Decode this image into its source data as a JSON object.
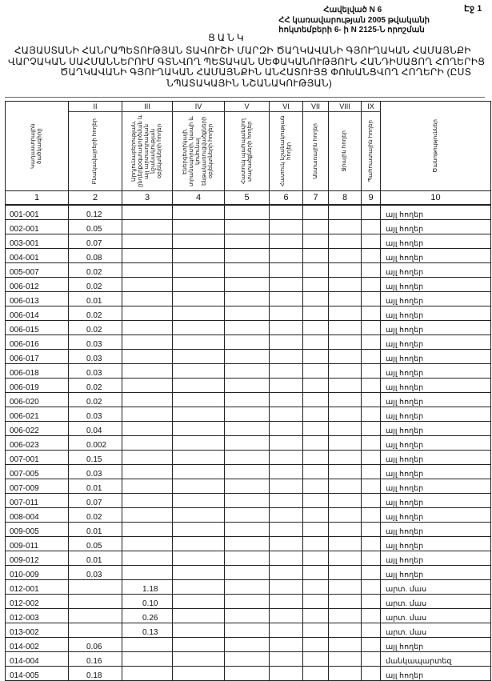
{
  "page_label": "Էջ 1",
  "annex": [
    "Հավելված N 6",
    "ՀՀ կառավարության 2005 թվականի",
    "հոկտեմբերի 6- ի N 2125-Ն որոշման"
  ],
  "list_label": "ՑԱՆԿ",
  "title_lines": [
    "ՀԱՅԱՍՏԱՆԻ ՀԱՆՐԱՊԵՏՈՒԹՅԱՆ ՏԱՎՈՒՇԻ ՄԱՐԶԻ ԾԱՂԿԱՎԱՆԻ ԳՅՈՒՂԱԿԱՆ ՀԱՄԱՅՆՔԻ",
    "ՎԱՐՉԱԿԱՆ ՍԱՀՄԱՆՆԵՐՈՒՄ ԳՏՆՎՈՂ ՊԵՏԱԿԱՆ ՍԵՓԱԿԱՆՈՒԹՅՈՒՆ ՀԱՆԴԻՍԱՑՈՂ ՀՈՂԵՐԻՑ",
    "ԾԱՂԿԱՎԱՆԻ ԳՅՈՒՂԱԿԱՆ ՀԱՄԱՅՆՔԻՆ ԱՆՀԱՏՈՒՅՑ ՓՈԽԱՆՑՎՈՂ ՀՈՂԵՐԻ (ԸՍՏ",
    "ՆՊԱՏԱԿԱՅԻՆ ՆՇԱՆԱԿՈՒԹՅԱՆ)"
  ],
  "table": {
    "roman": [
      "",
      "II",
      "III",
      "IV",
      "V",
      "VI",
      "VII",
      "VIII",
      "IX",
      ""
    ],
    "headers": [
      "Կադաստրային ծածկագիրը",
      "Բնակավայրերի հողեր",
      "Արդյունաբերության, ընդերքօգտագործման և այլ արտադրական նշանակության օբյեկտների հողեր",
      "Էներգետիկայի, տրանսպորտի, կապի և կոմունալ ենթակառուցվածքների օբյեկտների հողեր",
      "Հատուկ պահպանվող տարածքների հողեր",
      "Հատուկ նշանակության հողեր",
      "Անտառային հողեր",
      "Ջրային հողեր",
      "Պահուստային հողեր",
      "Ծանոթություններ"
    ],
    "numbers": [
      "1",
      "2",
      "3",
      "4",
      "5",
      "6",
      "7",
      "8",
      "9",
      "10"
    ],
    "rows": [
      {
        "code": "001-001",
        "c2": "0.12",
        "c3": "",
        "note": "այլ հողեր"
      },
      {
        "code": "002-001",
        "c2": "0.05",
        "c3": "",
        "note": "այլ հողեր"
      },
      {
        "code": "003-001",
        "c2": "0.07",
        "c3": "",
        "note": "այլ հողեր"
      },
      {
        "code": "004-001",
        "c2": "0.08",
        "c3": "",
        "note": "այլ հողեր"
      },
      {
        "code": "005-007",
        "c2": "0.02",
        "c3": "",
        "note": "այլ հողեր"
      },
      {
        "code": "006-012",
        "c2": "0.02",
        "c3": "",
        "note": "այլ հողեր"
      },
      {
        "code": "006-013",
        "c2": "0.01",
        "c3": "",
        "note": "այլ հողեր"
      },
      {
        "code": "006-014",
        "c2": "0.02",
        "c3": "",
        "note": "այլ հողեր"
      },
      {
        "code": "006-015",
        "c2": "0.02",
        "c3": "",
        "note": "այլ հողեր"
      },
      {
        "code": "006-016",
        "c2": "0.03",
        "c3": "",
        "note": "այլ հողեր"
      },
      {
        "code": "006-017",
        "c2": "0.03",
        "c3": "",
        "note": "այլ հողեր"
      },
      {
        "code": "006-018",
        "c2": "0.03",
        "c3": "",
        "note": "այլ հողեր"
      },
      {
        "code": "006-019",
        "c2": "0.02",
        "c3": "",
        "note": "այլ հողեր"
      },
      {
        "code": "006-020",
        "c2": "0.02",
        "c3": "",
        "note": "այլ հողեր"
      },
      {
        "code": "006-021",
        "c2": "0.03",
        "c3": "",
        "note": "այլ հողեր"
      },
      {
        "code": "006-022",
        "c2": "0.04",
        "c3": "",
        "note": "այլ հողեր"
      },
      {
        "code": "006-023",
        "c2": "0.002",
        "c3": "",
        "note": "այլ հողեր"
      },
      {
        "code": "007-001",
        "c2": "0.15",
        "c3": "",
        "note": "այլ հողեր"
      },
      {
        "code": "007-005",
        "c2": "0.03",
        "c3": "",
        "note": "այլ հողեր"
      },
      {
        "code": "007-009",
        "c2": "0.01",
        "c3": "",
        "note": "այլ հողեր"
      },
      {
        "code": "007-011",
        "c2": "0.07",
        "c3": "",
        "note": "այլ հողեր"
      },
      {
        "code": "008-004",
        "c2": "0.02",
        "c3": "",
        "note": "այլ հողեր"
      },
      {
        "code": "009-005",
        "c2": "0.01",
        "c3": "",
        "note": "այլ հողեր"
      },
      {
        "code": "009-011",
        "c2": "0.05",
        "c3": "",
        "note": "այլ հողեր"
      },
      {
        "code": "009-012",
        "c2": "0.01",
        "c3": "",
        "note": "այլ հողեր"
      },
      {
        "code": "010-009",
        "c2": "0.03",
        "c3": "",
        "note": "այլ հողեր"
      },
      {
        "code": "012-001",
        "c2": "",
        "c3": "1.18",
        "note": "արտ. մաս"
      },
      {
        "code": "012-002",
        "c2": "",
        "c3": "0.10",
        "note": "արտ. մաս"
      },
      {
        "code": "012-003",
        "c2": "",
        "c3": "0.26",
        "note": "արտ. մաս"
      },
      {
        "code": "013-002",
        "c2": "",
        "c3": "0.13",
        "note": "արտ. մաս"
      },
      {
        "code": "014-002",
        "c2": "0.06",
        "c3": "",
        "note": "այլ հողեր"
      },
      {
        "code": "014-004",
        "c2": "0.16",
        "c3": "",
        "note": "մանկապարտեզ"
      },
      {
        "code": "014-005",
        "c2": "0.18",
        "c3": "",
        "note": "այլ հողեր"
      }
    ]
  }
}
